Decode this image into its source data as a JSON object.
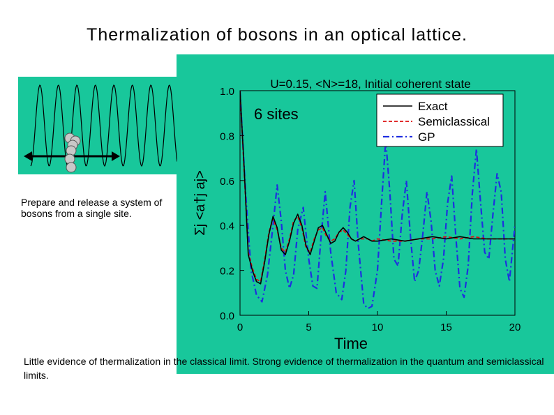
{
  "slide": {
    "title": "Thermalization of bosons in an optical lattice.",
    "prepare_text": "Prepare and release a system of bosons from a single site.",
    "bottom_text": "Little evidence of thermalization in the classical limit. Strong evidence of thermalization in the quantum and semiclassical limits."
  },
  "colors": {
    "panel": "#18c79b",
    "exact": "#000000",
    "semiclassical": "#dd1111",
    "gp": "#1f2fe0",
    "atom": "#c8c8c8"
  },
  "chart_data": {
    "type": "line",
    "title": "U=0.15, <N>=18, Initial coherent state",
    "annotation": "6 sites",
    "xlabel": "Time",
    "ylabel": "Σj <a†j aj>",
    "xlim": [
      0,
      20
    ],
    "ylim": [
      0,
      1.0
    ],
    "x_ticks": [
      "0",
      "5",
      "10",
      "15",
      "20"
    ],
    "y_ticks": [
      "0.0",
      "0.2",
      "0.4",
      "0.6",
      "0.8",
      "1.0"
    ],
    "legend_position": "top-right",
    "series": [
      {
        "name": "Exact",
        "style": "solid",
        "x": [
          0,
          0.3,
          0.6,
          0.9,
          1.2,
          1.5,
          1.8,
          2.1,
          2.4,
          2.7,
          3.0,
          3.3,
          3.6,
          3.9,
          4.2,
          4.5,
          4.8,
          5.1,
          5.4,
          5.7,
          6.0,
          6.3,
          6.6,
          6.9,
          7.2,
          7.5,
          7.8,
          8.1,
          8.4,
          8.7,
          9.0,
          9.3,
          9.6,
          10.0,
          11.0,
          12.0,
          13.0,
          14.0,
          15.0,
          16.0,
          17.0,
          18.0,
          19.0,
          20.0
        ],
        "y": [
          1.0,
          0.66,
          0.27,
          0.2,
          0.15,
          0.14,
          0.24,
          0.36,
          0.44,
          0.39,
          0.29,
          0.27,
          0.33,
          0.41,
          0.45,
          0.4,
          0.31,
          0.27,
          0.33,
          0.39,
          0.4,
          0.36,
          0.32,
          0.33,
          0.37,
          0.39,
          0.37,
          0.34,
          0.33,
          0.34,
          0.35,
          0.34,
          0.33,
          0.33,
          0.34,
          0.33,
          0.34,
          0.35,
          0.34,
          0.35,
          0.34,
          0.34,
          0.34,
          0.34
        ]
      },
      {
        "name": "Semiclassical",
        "style": "dashed",
        "x": [
          0,
          0.3,
          0.6,
          0.9,
          1.2,
          1.5,
          1.8,
          2.1,
          2.4,
          2.7,
          3.0,
          3.3,
          3.6,
          3.9,
          4.2,
          4.5,
          4.8,
          5.1,
          5.4,
          5.7,
          6.0,
          6.3,
          6.6,
          6.9,
          7.2,
          7.5,
          7.8,
          8.1,
          8.4,
          8.7,
          9.0,
          9.3,
          9.6,
          10.0,
          11.0,
          12.0,
          13.0,
          14.0,
          15.0,
          16.0,
          17.0,
          18.0,
          19.0,
          20.0
        ],
        "y": [
          1.0,
          0.64,
          0.28,
          0.21,
          0.16,
          0.15,
          0.25,
          0.37,
          0.43,
          0.38,
          0.3,
          0.28,
          0.34,
          0.42,
          0.44,
          0.39,
          0.3,
          0.28,
          0.34,
          0.38,
          0.39,
          0.35,
          0.33,
          0.34,
          0.37,
          0.38,
          0.36,
          0.34,
          0.33,
          0.34,
          0.34,
          0.34,
          0.33,
          0.34,
          0.33,
          0.33,
          0.34,
          0.34,
          0.35,
          0.34,
          0.35,
          0.34,
          0.34,
          0.34
        ]
      },
      {
        "name": "GP",
        "style": "dashdot",
        "x": [
          0,
          0.4,
          0.8,
          1.2,
          1.6,
          2.0,
          2.4,
          2.7,
          3.0,
          3.3,
          3.6,
          3.9,
          4.2,
          4.6,
          5.0,
          5.3,
          5.6,
          5.9,
          6.2,
          6.6,
          7.0,
          7.4,
          7.7,
          8.0,
          8.3,
          8.6,
          9.0,
          9.3,
          9.6,
          10.0,
          10.3,
          10.6,
          10.9,
          11.2,
          11.5,
          11.8,
          12.1,
          12.4,
          12.7,
          13.0,
          13.3,
          13.6,
          13.9,
          14.2,
          14.5,
          14.8,
          15.1,
          15.4,
          15.7,
          16.0,
          16.3,
          16.6,
          16.9,
          17.2,
          17.5,
          17.8,
          18.1,
          18.4,
          18.7,
          19.0,
          19.3,
          19.6,
          20.0
        ],
        "y": [
          1.0,
          0.55,
          0.2,
          0.09,
          0.06,
          0.18,
          0.4,
          0.58,
          0.42,
          0.2,
          0.12,
          0.18,
          0.38,
          0.48,
          0.25,
          0.13,
          0.12,
          0.35,
          0.55,
          0.28,
          0.1,
          0.07,
          0.2,
          0.48,
          0.6,
          0.32,
          0.05,
          0.03,
          0.04,
          0.2,
          0.5,
          0.78,
          0.55,
          0.25,
          0.22,
          0.45,
          0.6,
          0.35,
          0.15,
          0.2,
          0.36,
          0.55,
          0.42,
          0.2,
          0.13,
          0.25,
          0.5,
          0.62,
          0.35,
          0.12,
          0.08,
          0.22,
          0.54,
          0.74,
          0.5,
          0.28,
          0.25,
          0.45,
          0.63,
          0.55,
          0.25,
          0.15,
          0.4
        ]
      }
    ]
  }
}
